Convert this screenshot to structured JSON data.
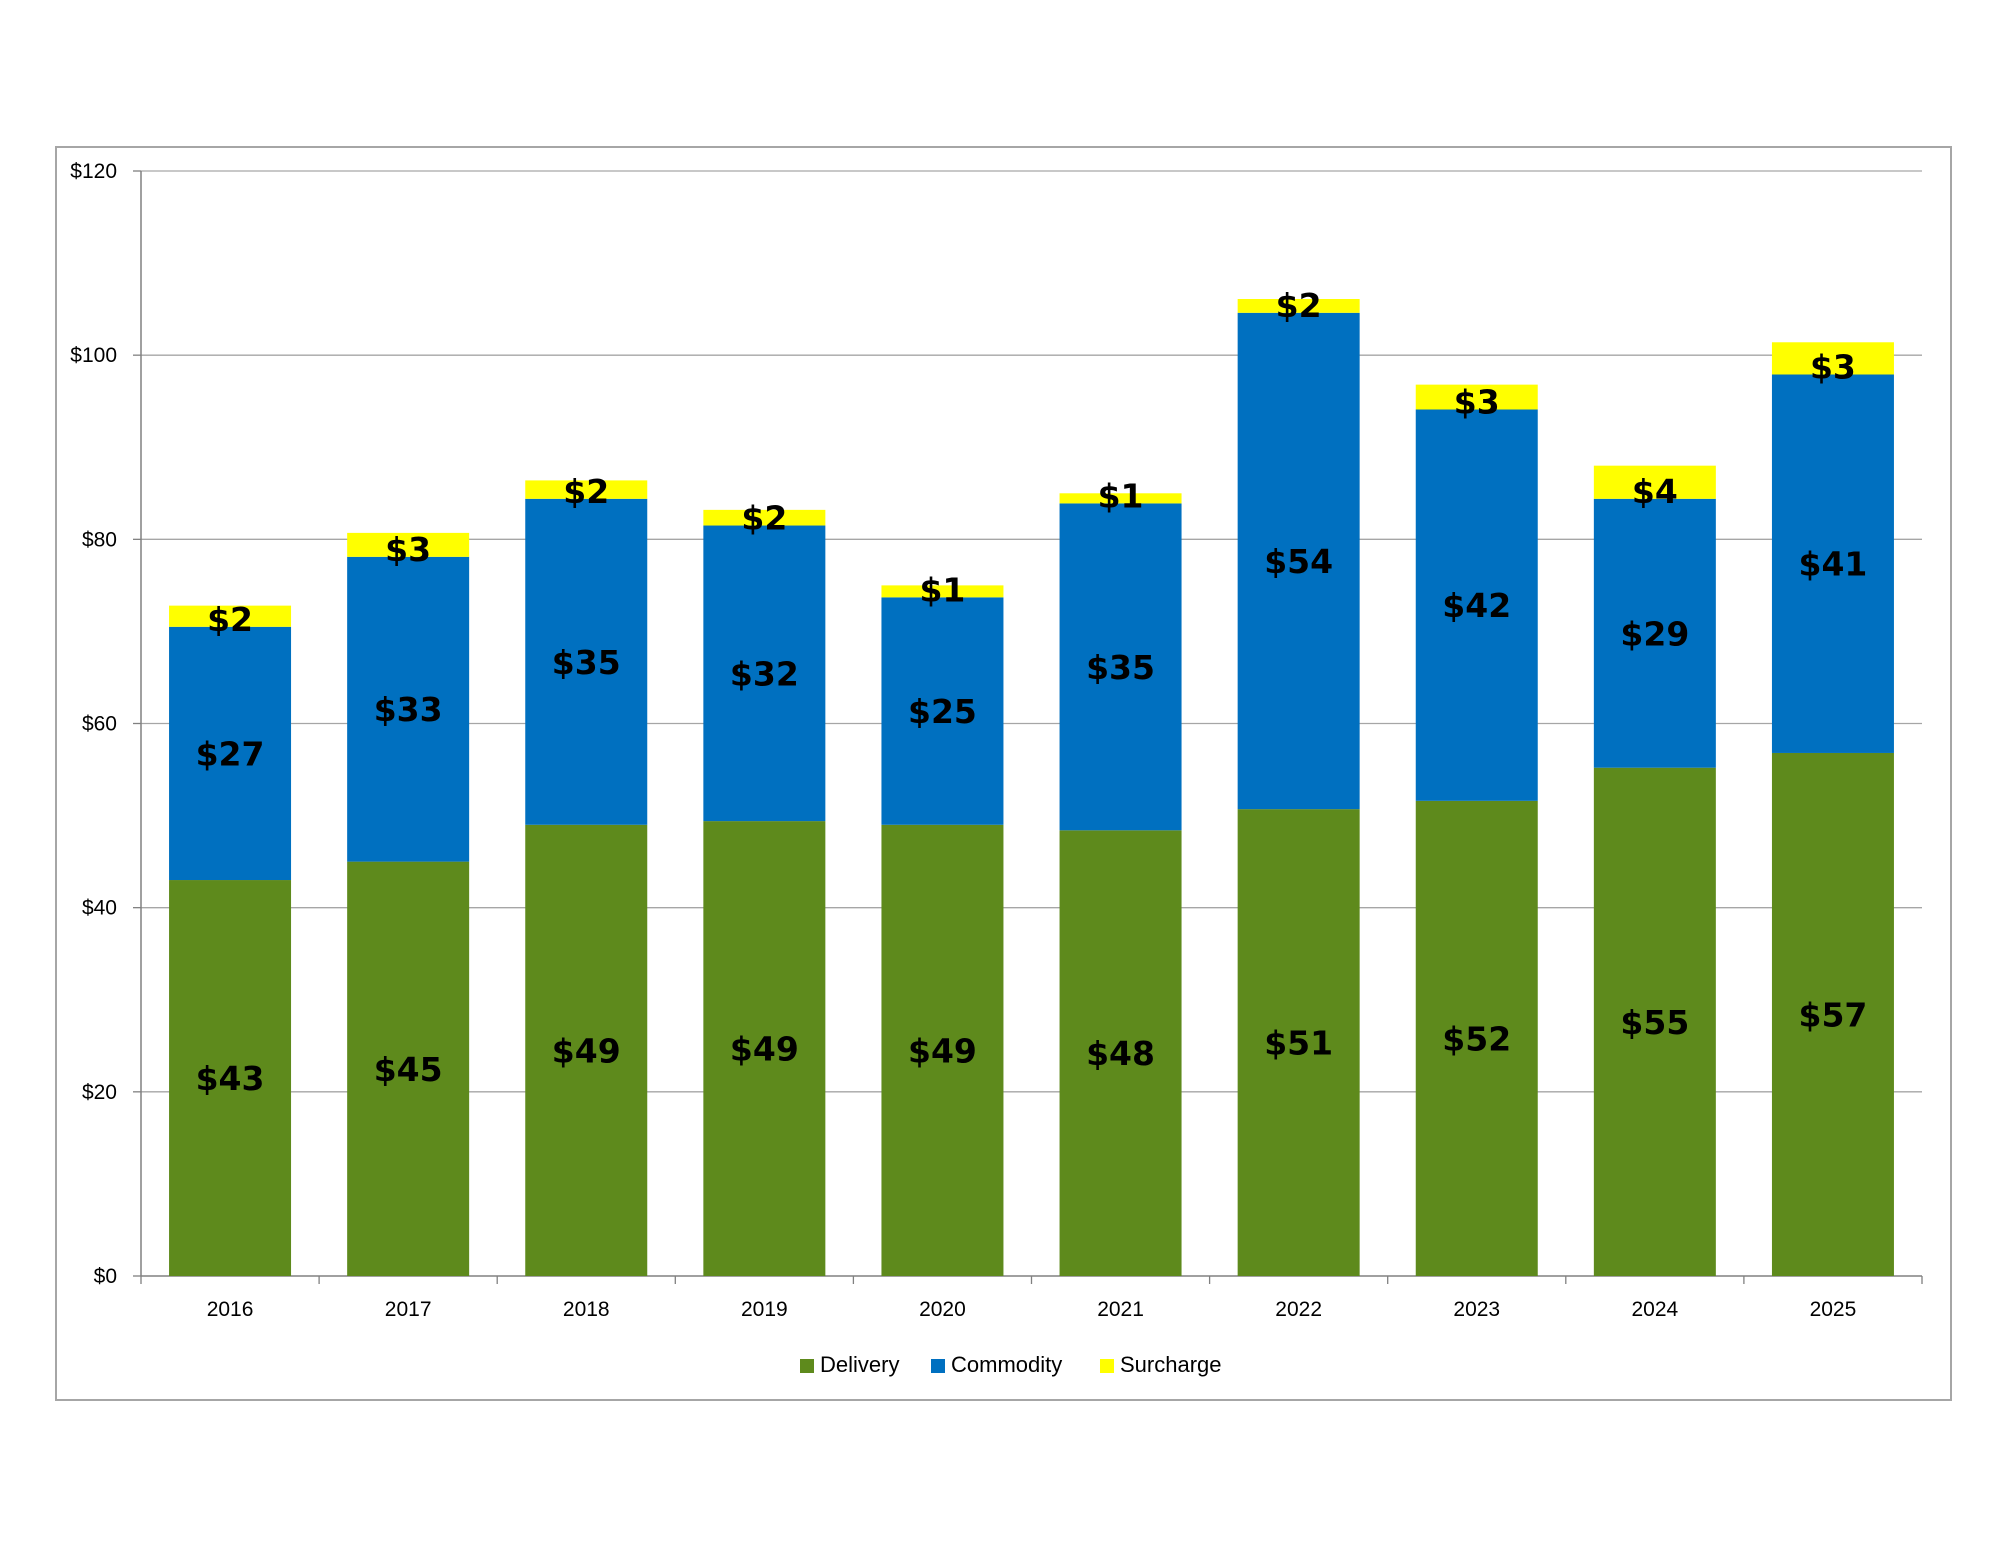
{
  "chart_data": {
    "type": "bar",
    "stacked": true,
    "title": "",
    "xlabel": "",
    "ylabel": "",
    "ylim": [
      0,
      120
    ],
    "y_ticks": [
      0,
      20,
      40,
      60,
      80,
      100,
      120
    ],
    "y_tick_labels": [
      "$0",
      "$20",
      "$40",
      "$60",
      "$80",
      "$100",
      "$120"
    ],
    "grid": true,
    "legend_position": "bottom-center",
    "categories": [
      "2016",
      "2017",
      "2018",
      "2019",
      "2020",
      "2021",
      "2022",
      "2023",
      "2024",
      "2025"
    ],
    "series": [
      {
        "name": "Delivery",
        "color": "#5e8a1c",
        "values": [
          43,
          45,
          49,
          49.4,
          49,
          48.4,
          50.7,
          51.6,
          55.2,
          56.8
        ],
        "labels": [
          "$43",
          "$45",
          "$49",
          "$49",
          "$49",
          "$48",
          "$51",
          "$52",
          "$55",
          "$57"
        ]
      },
      {
        "name": "Commodity",
        "color": "#0070c0",
        "values": [
          27.5,
          33.1,
          35.4,
          32.1,
          24.7,
          35.5,
          53.9,
          42.5,
          29.2,
          41.1
        ],
        "labels": [
          "$27",
          "$33",
          "$35",
          "$32",
          "$25",
          "$35",
          "$54",
          "$42",
          "$29",
          "$41"
        ]
      },
      {
        "name": "Surcharge",
        "color": "#ffff00",
        "values": [
          2.3,
          2.6,
          2.0,
          1.7,
          1.3,
          1.1,
          1.5,
          2.7,
          3.6,
          3.5
        ],
        "labels": [
          "$2",
          "$3",
          "$2",
          "$2",
          "$1",
          "$1",
          "$2",
          "$3",
          "$4",
          "$3"
        ]
      }
    ]
  }
}
